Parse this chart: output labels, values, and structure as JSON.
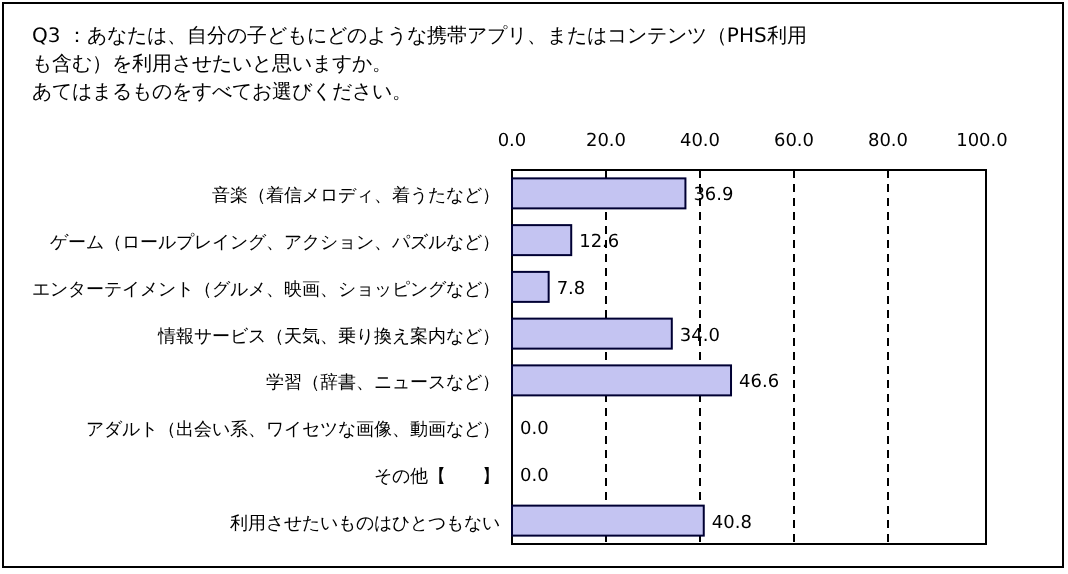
{
  "chart_data": {
    "type": "bar",
    "orientation": "horizontal",
    "title": "Q3 ：あなたは、自分の子どもにどのような携帯アプリ、またはコンテンツ（PHS利用も含む）を利用させたいと思いますか。",
    "subtitle": "あてはまるものをすべてお選びください。",
    "categories": [
      "音楽（着信メロディ、着うたなど）",
      "ゲーム（ロールプレイング、アクション、パズルなど）",
      "エンターテイメント（グルメ、映画、ショッピングなど）",
      "情報サービス（天気、乗り換え案内など）",
      "学習（辞書、ニュースなど）",
      "アダルト（出会い系、ワイセツな画像、動画など）",
      "その他【　　】",
      "利用させたいものはひとつもない"
    ],
    "values": [
      36.9,
      12.6,
      7.8,
      34.0,
      46.6,
      0,
      0,
      40.8
    ],
    "value_labels": [
      "36.9",
      "12.6",
      "7.8",
      "34.0",
      "46.6",
      "0.0",
      "0.0",
      "40.8"
    ],
    "color": "#c4c4f2",
    "xlim": [
      0,
      100
    ],
    "xticks": [
      {
        "value": 0,
        "label": "0.0"
      },
      {
        "value": 20,
        "label": "20.0"
      },
      {
        "value": 40,
        "label": "40.0"
      },
      {
        "value": 60,
        "label": "60.0"
      },
      {
        "value": 80,
        "label": "80.0"
      },
      {
        "value": 100,
        "label": "100.0"
      }
    ],
    "grid": "x"
  }
}
